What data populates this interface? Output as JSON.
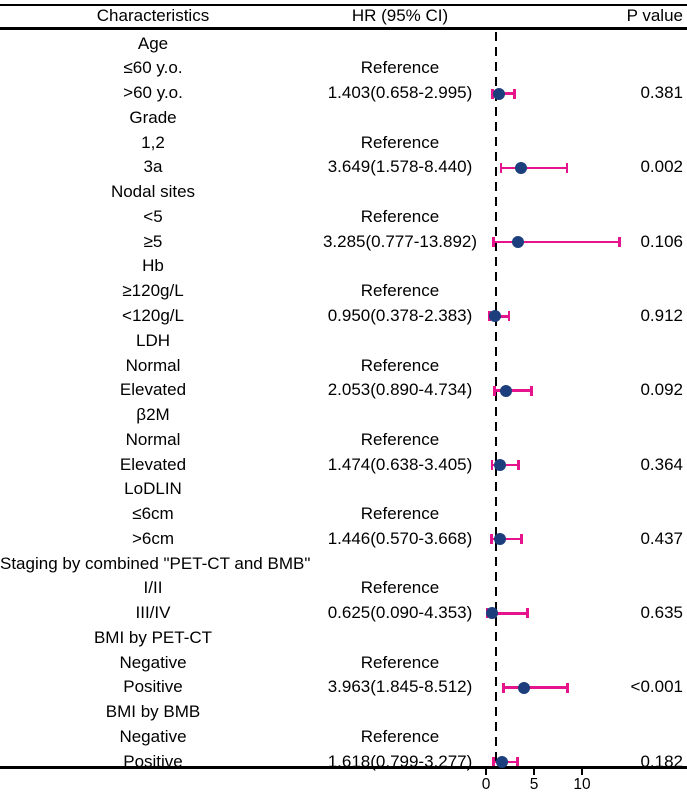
{
  "header": {
    "characteristics": "Characteristics",
    "hr_ci": "HR (95% CI)",
    "p_value": "P value"
  },
  "chart_data": {
    "type": "forest",
    "title": "",
    "columns": [
      "Characteristics",
      "HR (95% CI)",
      "P value"
    ],
    "x_axis": {
      "ticks": [
        0,
        5,
        10
      ],
      "reference_line": 1,
      "reference_line_style": "dashed",
      "range_shown": [
        -0.3,
        20.5
      ]
    },
    "colors": {
      "marker": "#1c3e7c",
      "error_bar": "#e5148c",
      "line": "#000000",
      "text": "#000000",
      "background": "#ffffff"
    },
    "rows": [
      {
        "kind": "group",
        "label": "Age"
      },
      {
        "kind": "ref",
        "label": "≤60 y.o.",
        "hr_text": "Reference"
      },
      {
        "kind": "est",
        "label": ">60 y.o.",
        "hr_text": "1.403(0.658-2.995)",
        "hr": 1.403,
        "lo": 0.658,
        "hi": 2.995,
        "p": "0.381"
      },
      {
        "kind": "group",
        "label": "Grade"
      },
      {
        "kind": "ref",
        "label": "1,2",
        "hr_text": "Reference"
      },
      {
        "kind": "est",
        "label": "3a",
        "hr_text": "3.649(1.578-8.440)",
        "hr": 3.649,
        "lo": 1.578,
        "hi": 8.44,
        "p": "0.002"
      },
      {
        "kind": "group",
        "label": "Nodal sites"
      },
      {
        "kind": "ref",
        "label": "<5",
        "hr_text": "Reference"
      },
      {
        "kind": "est",
        "label": "≥5",
        "hr_text": "3.285(0.777-13.892)",
        "hr": 3.285,
        "lo": 0.777,
        "hi": 13.892,
        "p": "0.106"
      },
      {
        "kind": "group",
        "label": "Hb"
      },
      {
        "kind": "ref",
        "label": "≥120g/L",
        "hr_text": "Reference"
      },
      {
        "kind": "est",
        "label": "<120g/L",
        "hr_text": "0.950(0.378-2.383)",
        "hr": 0.95,
        "lo": 0.378,
        "hi": 2.383,
        "p": "0.912"
      },
      {
        "kind": "group",
        "label": "LDH"
      },
      {
        "kind": "ref",
        "label": "Normal",
        "hr_text": "Reference"
      },
      {
        "kind": "est",
        "label": "Elevated",
        "hr_text": "2.053(0.890-4.734)",
        "hr": 2.053,
        "lo": 0.89,
        "hi": 4.734,
        "p": "0.092"
      },
      {
        "kind": "group",
        "label": "β2M"
      },
      {
        "kind": "ref",
        "label": "Normal",
        "hr_text": "Reference"
      },
      {
        "kind": "est",
        "label": "Elevated",
        "hr_text": "1.474(0.638-3.405)",
        "hr": 1.474,
        "lo": 0.638,
        "hi": 3.405,
        "p": "0.364"
      },
      {
        "kind": "group",
        "label": "LoDLIN"
      },
      {
        "kind": "ref",
        "label": "≤6cm",
        "hr_text": "Reference"
      },
      {
        "kind": "est",
        "label": ">6cm",
        "hr_text": "1.446(0.570-3.668)",
        "hr": 1.446,
        "lo": 0.57,
        "hi": 3.668,
        "p": "0.437"
      },
      {
        "kind": "group",
        "label": "Staging by combined \"PET-CT and BMB\""
      },
      {
        "kind": "ref",
        "label": "I/II",
        "hr_text": "Reference"
      },
      {
        "kind": "est",
        "label": "III/IV",
        "hr_text": "0.625(0.090-4.353)",
        "hr": 0.625,
        "lo": 0.09,
        "hi": 4.353,
        "p": "0.635"
      },
      {
        "kind": "group",
        "label": "BMI by PET-CT"
      },
      {
        "kind": "ref",
        "label": "Negative",
        "hr_text": "Reference"
      },
      {
        "kind": "est",
        "label": "Positive",
        "hr_text": "3.963(1.845-8.512)",
        "hr": 3.963,
        "lo": 1.845,
        "hi": 8.512,
        "p": "<0.001"
      },
      {
        "kind": "group",
        "label": "BMI by BMB"
      },
      {
        "kind": "ref",
        "label": "Negative",
        "hr_text": "Reference"
      },
      {
        "kind": "est",
        "label": "Positive",
        "hr_text": "1.618(0.799-3.277)",
        "hr": 1.618,
        "lo": 0.799,
        "hi": 3.277,
        "p": "0.182"
      }
    ]
  }
}
